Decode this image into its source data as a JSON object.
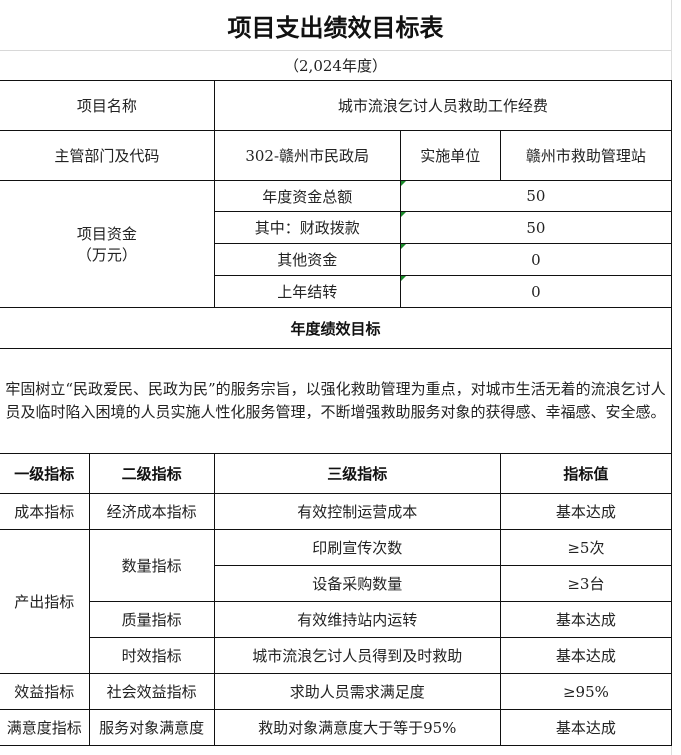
{
  "title": "项目支出绩效目标表",
  "year": "（2,024年度）",
  "project": {
    "name_label": "项目名称",
    "name_value": "城市流浪乞讨人员救助工作经费",
    "dept_label": "主管部门及代码",
    "dept_value": "302-赣州市民政局",
    "impl_label": "实施单位",
    "impl_value": "赣州市救助管理站"
  },
  "funds": {
    "label": "项目资金",
    "unit": "（万元）",
    "rows": [
      {
        "label": "年度资金总额",
        "value": "50"
      },
      {
        "label": "其中：财政拨款",
        "value": "50"
      },
      {
        "label": "其他资金",
        "value": "0"
      },
      {
        "label": "上年结转",
        "value": "0"
      }
    ]
  },
  "goal": {
    "header": "年度绩效目标",
    "text": "牢固树立“民政爱民、民政为民”的服务宗旨，以强化救助管理为重点，对城市生活无着的流浪乞讨人员及临时陷入困境的人员实施人性化服务管理，不断增强救助服务对象的获得感、幸福感、安全感。"
  },
  "indicators": {
    "headers": [
      "一级指标",
      "二级指标",
      "三级指标",
      "指标值"
    ],
    "l1": [
      "成本指标",
      "产出指标",
      "效益指标",
      "满意度指标"
    ],
    "l2": [
      "经济成本指标",
      "数量指标",
      "质量指标",
      "时效指标",
      "社会效益指标",
      "服务对象满意度"
    ],
    "rows": [
      {
        "l3": "有效控制运营成本",
        "value": "基本达成"
      },
      {
        "l3": "印刷宣传次数",
        "value": "≥5次"
      },
      {
        "l3": "设备采购数量",
        "value": "≥3台"
      },
      {
        "l3": "有效维持站内运转",
        "value": "基本达成"
      },
      {
        "l3": "城市流浪乞讨人员得到及时救助",
        "value": "基本达成"
      },
      {
        "l3": "求助人员需求满足度",
        "value": "≥95%"
      },
      {
        "l3": "救助对象满意度大于等于95%",
        "value": "基本达成"
      }
    ]
  },
  "colors": {
    "border": "#111111",
    "gridline": "#d8d8d8",
    "comment_marker": "#1a8a2a"
  }
}
